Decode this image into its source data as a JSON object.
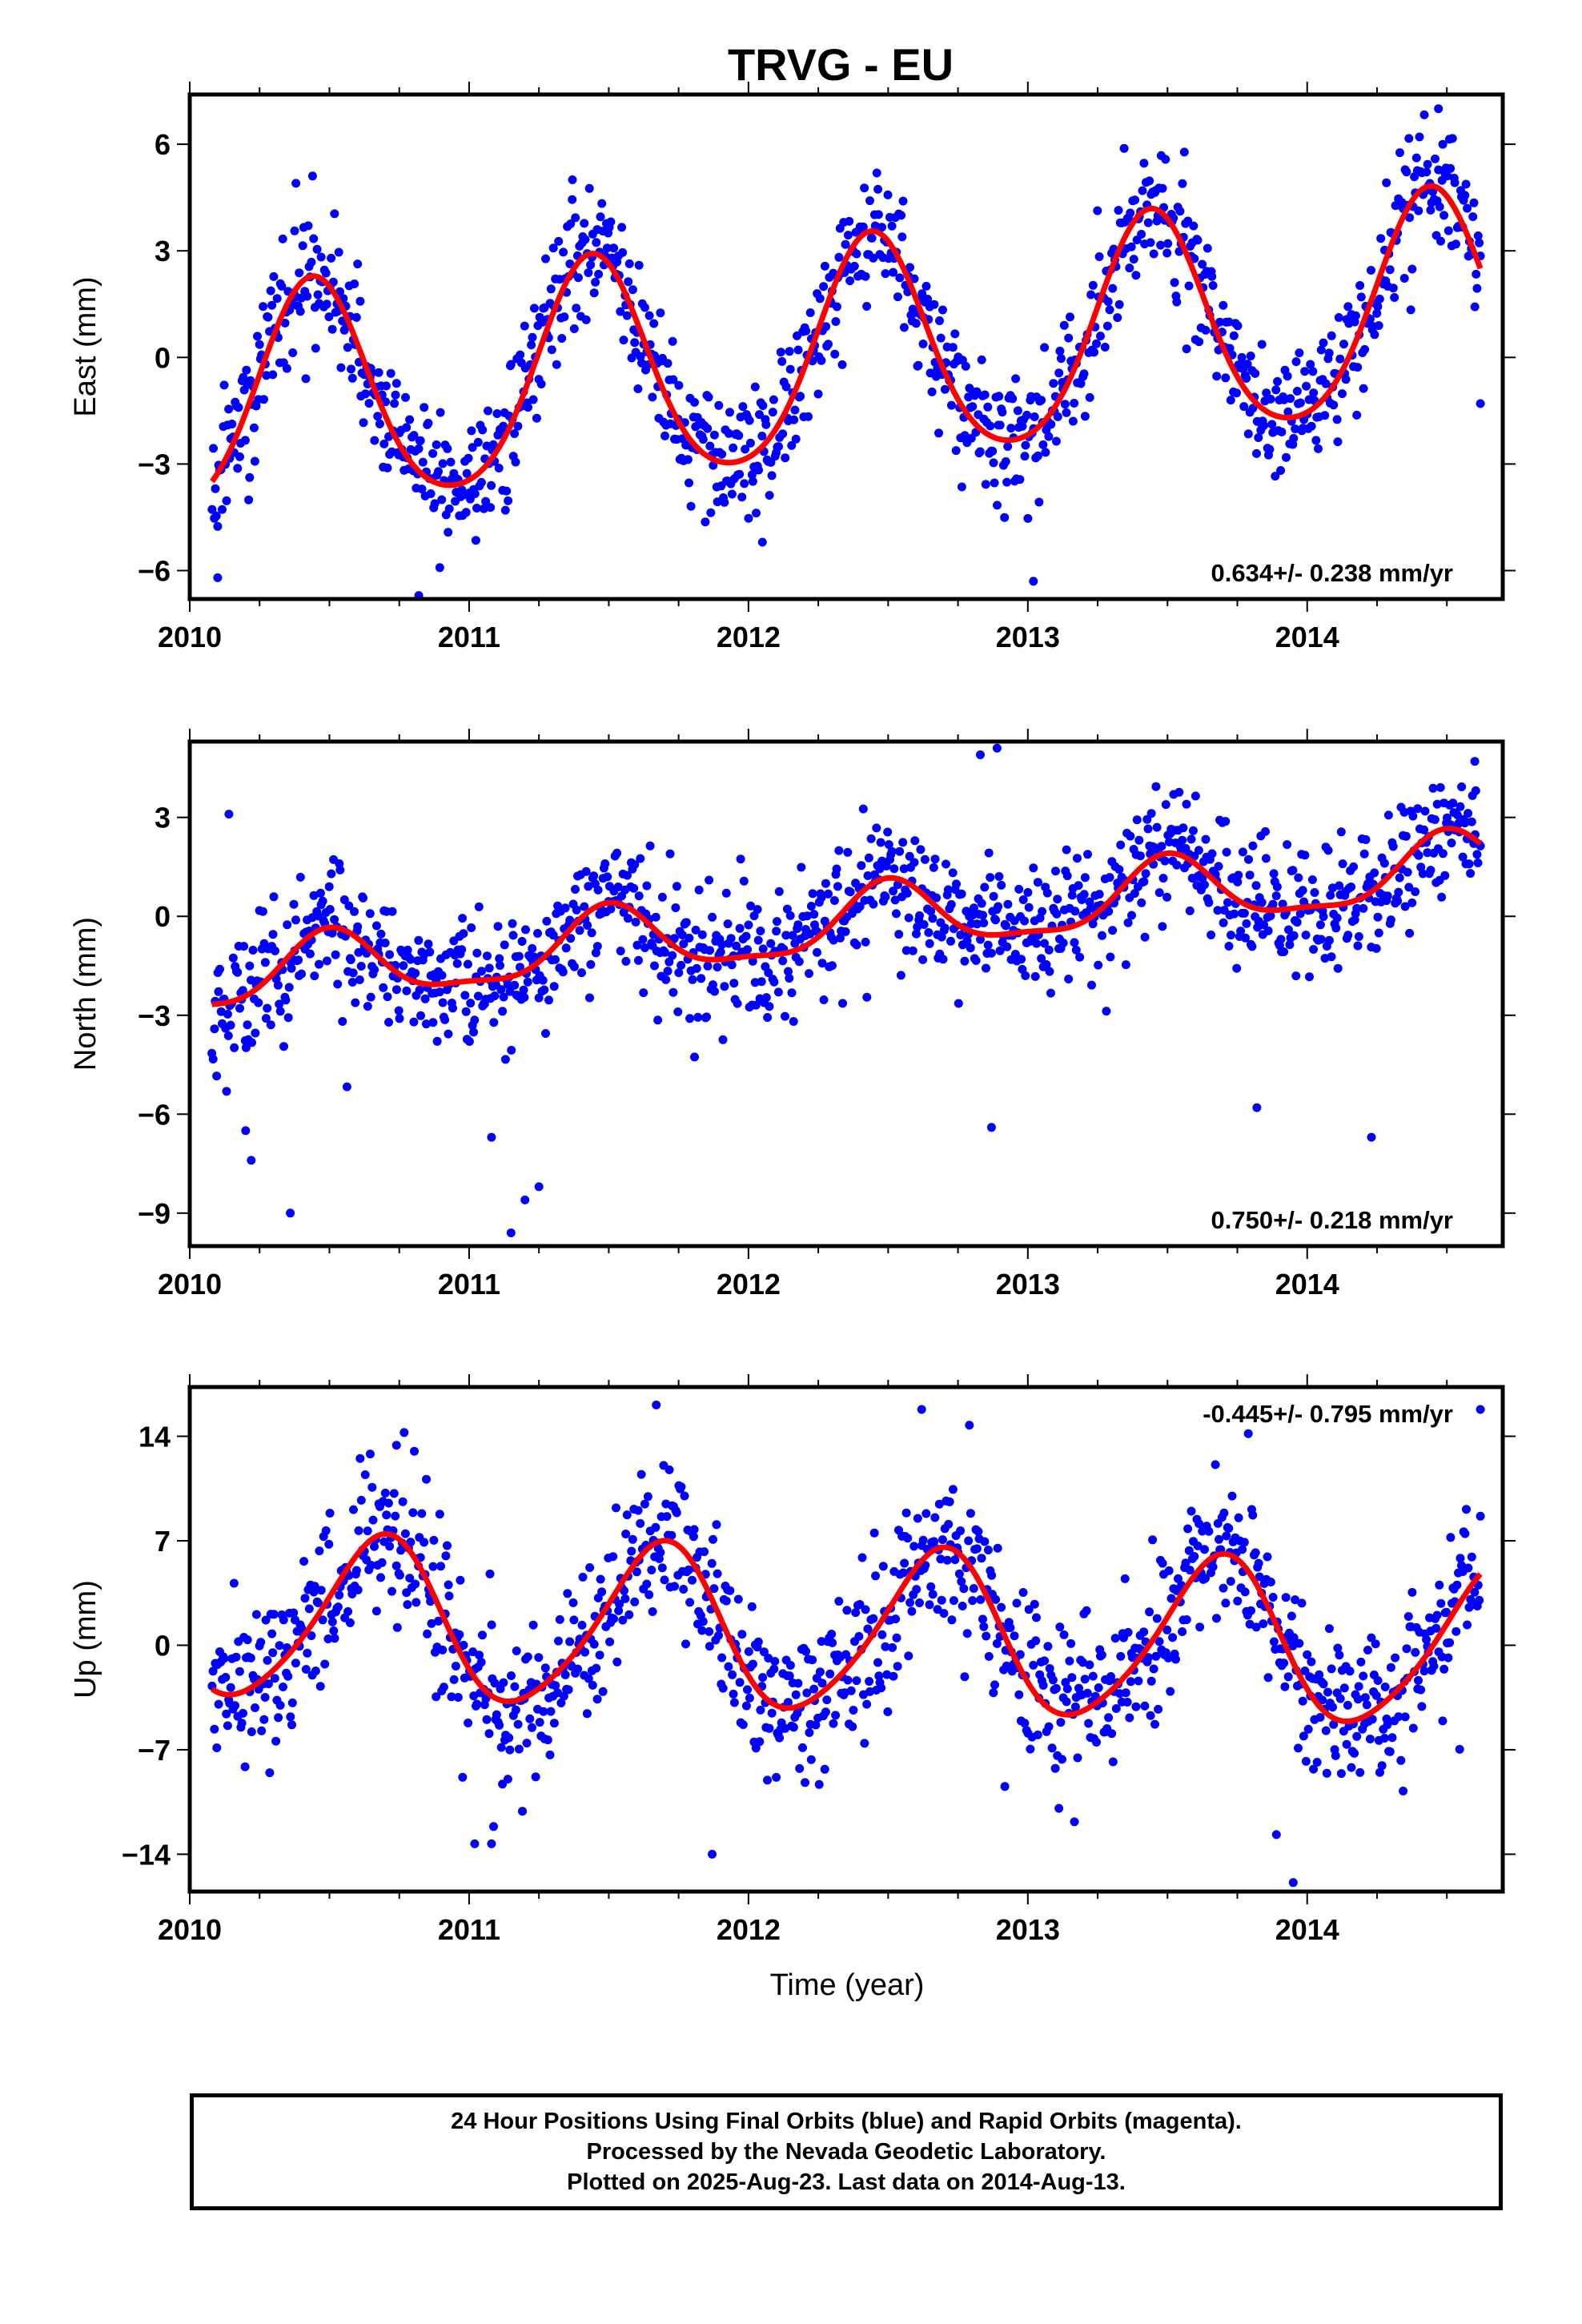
{
  "title": "TRVG - EU",
  "footer": {
    "line1": "24 Hour Positions Using Final Orbits (blue) and Rapid Orbits (magenta).",
    "line2": "Processed by the Nevada Geodetic Laboratory.",
    "line3": "Plotted on 2025-Aug-23. Last data on 2014-Aug-13."
  },
  "colors": {
    "observed": "#0000ff",
    "model": "#ff0000",
    "frame": "#000000"
  },
  "chart_data": [
    {
      "type": "scatter",
      "name": "east",
      "ylabel": "East (mm)",
      "xlabel": "",
      "xlim": [
        2010.0,
        2014.7
      ],
      "ylim": [
        -6.8,
        7.4
      ],
      "xticks": [
        2010,
        2011,
        2012,
        2013,
        2014
      ],
      "xticklabels": [
        "2010",
        "2011",
        "2012",
        "2013",
        "2014"
      ],
      "yticks": [
        -6,
        -3,
        0,
        3,
        6
      ],
      "yticklabels": [
        "−6",
        "−3",
        "0",
        "3",
        "6"
      ],
      "rate_label": "0.634+/- 0.238 mm/yr",
      "rate_label_position": "bottom-right",
      "model": {
        "mean": 0.0,
        "rate_mm_per_yr": 0.634,
        "ref_epoch": 2012.35,
        "annual_amplitude": 3.1,
        "peak_epoch": 2010.44,
        "semiannual_amplitude": 0.4,
        "semiannual_peak_epoch": 2010.44
      },
      "points": {
        "start": 2010.08,
        "end": 2014.62,
        "count": 1150,
        "scatter_sd": 0.9,
        "seed": 11,
        "notable": [
          [
            2010.1,
            -6.2
          ],
          [
            2010.82,
            -6.7
          ],
          [
            2012.05,
            -5.2
          ],
          [
            2013.02,
            -6.3
          ],
          [
            2014.47,
            7.0
          ],
          [
            2014.62,
            -1.3
          ],
          [
            2010.38,
            4.9
          ],
          [
            2011.37,
            5.0
          ]
        ]
      }
    },
    {
      "type": "scatter",
      "name": "north",
      "ylabel": "North (mm)",
      "xlabel": "",
      "xlim": [
        2010.0,
        2014.7
      ],
      "ylim": [
        -10.0,
        5.3
      ],
      "xticks": [
        2010,
        2011,
        2012,
        2013,
        2014
      ],
      "xticklabels": [
        "2010",
        "2011",
        "2012",
        "2013",
        "2014"
      ],
      "yticks": [
        -9,
        -6,
        -3,
        0,
        3
      ],
      "yticklabels": [
        "−9",
        "−6",
        "−3",
        "0",
        "3"
      ],
      "rate_label": "0.750+/- 0.218 mm/yr",
      "rate_label_position": "bottom-right",
      "model": {
        "mean": -0.25,
        "rate_mm_per_yr": 0.75,
        "ref_epoch": 2012.35,
        "annual_amplitude": 1.0,
        "peak_epoch": 2010.5,
        "semiannual_amplitude": 0.3,
        "semiannual_peak_epoch": 2010.5
      },
      "points": {
        "start": 2010.08,
        "end": 2014.62,
        "count": 1150,
        "scatter_sd": 0.95,
        "seed": 23,
        "notable": [
          [
            2010.14,
            3.1
          ],
          [
            2010.2,
            -6.5
          ],
          [
            2010.22,
            -7.4
          ],
          [
            2010.36,
            -9.0
          ],
          [
            2011.08,
            -6.7
          ],
          [
            2011.15,
            -9.6
          ],
          [
            2011.2,
            -8.6
          ],
          [
            2011.25,
            -8.2
          ],
          [
            2012.89,
            5.1
          ],
          [
            2012.83,
            4.9
          ],
          [
            2012.87,
            -6.4
          ],
          [
            2013.82,
            -5.8
          ],
          [
            2014.23,
            -6.7
          ],
          [
            2014.6,
            4.7
          ]
        ]
      }
    },
    {
      "type": "scatter",
      "name": "up",
      "ylabel": "Up (mm)",
      "xlabel": "Time (year)",
      "xlim": [
        2010.0,
        2014.7
      ],
      "ylim": [
        -16.5,
        17.3
      ],
      "xticks": [
        2010,
        2011,
        2012,
        2013,
        2014
      ],
      "xticklabels": [
        "2010",
        "2011",
        "2012",
        "2013",
        "2014"
      ],
      "yticks": [
        -14,
        -7,
        0,
        7,
        14
      ],
      "yticklabels": [
        "−14",
        "−7",
        "0",
        "7",
        "14"
      ],
      "rate_label": "-0.445+/- 0.795 mm/yr",
      "rate_label_position": "top-right",
      "model": {
        "mean": 0.8,
        "rate_mm_per_yr": -0.445,
        "ref_epoch": 2012.35,
        "annual_amplitude": 5.4,
        "peak_epoch": 2010.68,
        "semiannual_amplitude": 0.7,
        "semiannual_peak_epoch": 2010.75
      },
      "points": {
        "start": 2010.08,
        "end": 2014.62,
        "count": 1150,
        "scatter_sd": 2.7,
        "seed": 37,
        "notable": [
          [
            2011.67,
            16.1
          ],
          [
            2012.62,
            15.8
          ],
          [
            2014.62,
            15.8
          ],
          [
            2011.87,
            -14.0
          ],
          [
            2013.95,
            -15.9
          ],
          [
            2010.74,
            13.4
          ],
          [
            2011.02,
            -13.3
          ],
          [
            2011.08,
            -13.3
          ]
        ]
      }
    }
  ]
}
